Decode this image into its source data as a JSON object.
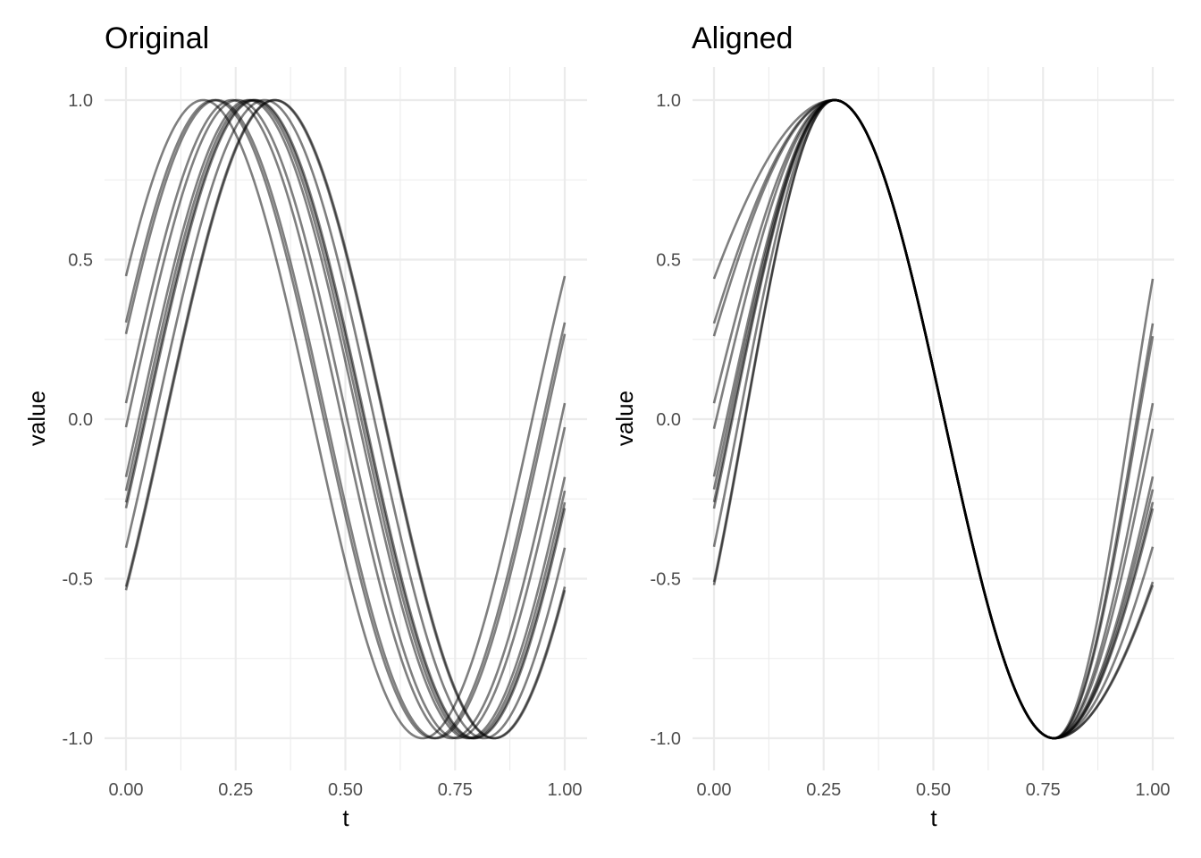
{
  "chart_data": [
    {
      "type": "line",
      "title": "Original",
      "xlabel": "t",
      "ylabel": "value",
      "xlim": [
        0,
        1
      ],
      "ylim": [
        -1,
        1
      ],
      "x_ticks": [
        "0.00",
        "0.25",
        "0.50",
        "0.75",
        "1.00"
      ],
      "y_ticks": [
        "-1.0",
        "-0.5",
        "0.0",
        "0.5",
        "1.0"
      ],
      "grid": true,
      "line_color": "#000000",
      "curve_family": "sin(2*pi*(t + phase))",
      "series": [
        {
          "phase": 0.074
        },
        {
          "phase": 0.049
        },
        {
          "phase": 0.043
        },
        {
          "phase": 0.008
        },
        {
          "phase": -0.004
        },
        {
          "phase": -0.029
        },
        {
          "phase": -0.036
        },
        {
          "phase": -0.042
        },
        {
          "phase": -0.045
        },
        {
          "phase": -0.066
        },
        {
          "phase": -0.088
        },
        {
          "phase": -0.09
        }
      ]
    },
    {
      "type": "line",
      "title": "Aligned",
      "xlabel": "t",
      "ylabel": "value",
      "xlim": [
        0,
        1
      ],
      "ylim": [
        -1,
        1
      ],
      "x_ticks": [
        "0.00",
        "0.25",
        "0.50",
        "0.75",
        "1.00"
      ],
      "y_ticks": [
        "-1.0",
        "-0.5",
        "0.0",
        "0.5",
        "1.0"
      ],
      "grid": true,
      "line_color": "#000000",
      "aligned_peak_t": 0.275,
      "aligned_trough_t": 0.775,
      "series": [
        {
          "start_value": 0.44,
          "end_value": 0.44
        },
        {
          "start_value": 0.3,
          "end_value": 0.3
        },
        {
          "start_value": 0.26,
          "end_value": 0.26
        },
        {
          "start_value": 0.05,
          "end_value": 0.05
        },
        {
          "start_value": -0.03,
          "end_value": -0.03
        },
        {
          "start_value": -0.18,
          "end_value": -0.18
        },
        {
          "start_value": -0.22,
          "end_value": -0.22
        },
        {
          "start_value": -0.26,
          "end_value": -0.26
        },
        {
          "start_value": -0.28,
          "end_value": -0.28
        },
        {
          "start_value": -0.4,
          "end_value": -0.4
        },
        {
          "start_value": -0.51,
          "end_value": -0.51
        },
        {
          "start_value": -0.52,
          "end_value": -0.52
        }
      ]
    }
  ]
}
